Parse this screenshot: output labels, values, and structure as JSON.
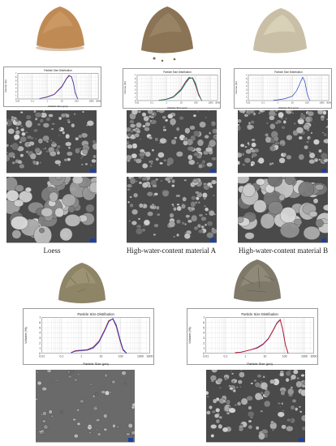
{
  "captions": {
    "loess": "Loess",
    "material_a": "High-water-content material A",
    "material_b": "High-water-content material B"
  },
  "colors": {
    "loess": "#c08a55",
    "material_a": "#8b7355",
    "material_b": "#c9bfa6",
    "material_ab_mix_1": "#8e8466",
    "material_ab_mix_2": "#7f796a",
    "curve_red": "#d2232a",
    "curve_blue": "#2440c8",
    "curve_green": "#2e9a3a"
  },
  "chart_data": [
    {
      "id": "loess",
      "type": "line",
      "title": "Particle Size Distribution",
      "xlabel": "Particle Size (μm)",
      "ylabel": "Volume (%)",
      "xscale": "log",
      "xlim": [
        0.01,
        3000
      ],
      "ylim": [
        0,
        7
      ],
      "xticks": [
        "0.01",
        "0.1",
        "1",
        "10",
        "100",
        "1000",
        "3000"
      ],
      "yticks": [
        "0",
        "1",
        "2",
        "3",
        "4",
        "5",
        "6",
        "7"
      ],
      "grid": true,
      "series": [
        {
          "color": "#d2232a",
          "x": [
            0.3,
            1,
            3,
            10,
            20,
            30,
            45,
            60,
            80,
            120
          ],
          "y": [
            0.1,
            0.6,
            1.3,
            3.5,
            5.6,
            6.5,
            6.0,
            4.3,
            1.6,
            0
          ]
        },
        {
          "color": "#2440c8",
          "x": [
            0.3,
            1,
            3,
            10,
            20,
            30,
            45,
            60,
            80,
            120
          ],
          "y": [
            0.1,
            0.5,
            1.2,
            3.3,
            5.4,
            6.3,
            6.1,
            4.5,
            1.8,
            0
          ]
        }
      ]
    },
    {
      "id": "material_a",
      "type": "line",
      "title": "Particle Size Distribution",
      "xlabel": "Particle Size (μm)",
      "ylabel": "Volume (%)",
      "xscale": "log",
      "xlim": [
        0.01,
        3000
      ],
      "ylim": [
        0,
        7
      ],
      "xticks": [
        "0.01",
        "0.1",
        "1",
        "10",
        "100",
        "1000",
        "3000"
      ],
      "yticks": [
        "0",
        "1",
        "2",
        "3",
        "4",
        "5",
        "6",
        "7"
      ],
      "grid": true,
      "series": [
        {
          "color": "#d2232a",
          "x": [
            0.3,
            1,
            3,
            10,
            20,
            35,
            60,
            100,
            150,
            250
          ],
          "y": [
            0.05,
            0.4,
            1.1,
            3.2,
            5.2,
            6.4,
            6.0,
            3.8,
            1.5,
            0
          ]
        },
        {
          "color": "#2440c8",
          "x": [
            0.3,
            1,
            3,
            10,
            20,
            35,
            60,
            100,
            150,
            250
          ],
          "y": [
            0.05,
            0.4,
            1.0,
            3.0,
            5.0,
            6.2,
            6.1,
            4.2,
            1.8,
            0
          ]
        },
        {
          "color": "#2e9a3a",
          "x": [
            0.3,
            1,
            3,
            10,
            20,
            35,
            60,
            100,
            150,
            250
          ],
          "y": [
            0.05,
            0.3,
            0.9,
            2.8,
            4.7,
            6.0,
            6.3,
            4.6,
            2.0,
            0
          ]
        }
      ]
    },
    {
      "id": "material_b",
      "type": "line",
      "title": "Particle Size Distribution",
      "xlabel": "Particle Size (μm)",
      "ylabel": "Volume (%)",
      "xscale": "log",
      "xlim": [
        0.01,
        3000
      ],
      "ylim": [
        0,
        7
      ],
      "xticks": [
        "0.01",
        "0.1",
        "1",
        "10",
        "100",
        "1000",
        "3000"
      ],
      "yticks": [
        "0",
        "1",
        "2",
        "3",
        "4",
        "5",
        "6",
        "7"
      ],
      "grid": true,
      "series": [
        {
          "color": "#2440c8",
          "x": [
            0.5,
            1,
            3,
            10,
            20,
            35,
            50,
            70,
            100,
            150
          ],
          "y": [
            0.05,
            0.2,
            0.5,
            1.2,
            2.8,
            5.0,
            6.4,
            5.2,
            2.0,
            0
          ]
        }
      ]
    },
    {
      "id": "mix_1",
      "type": "line",
      "title": "Particle Size Distribution",
      "xlabel": "Particle Size (μm)",
      "ylabel": "Volume (%)",
      "xscale": "log",
      "xlim": [
        0.01,
        3000
      ],
      "ylim": [
        0,
        7
      ],
      "xticks": [
        "0.01",
        "0.1",
        "1",
        "10",
        "100",
        "1000",
        "3000"
      ],
      "yticks": [
        "0",
        "1",
        "2",
        "3",
        "4",
        "5",
        "6",
        "7"
      ],
      "grid": true,
      "series": [
        {
          "color": "#d2232a",
          "x": [
            0.3,
            0.5,
            1,
            2,
            4,
            8,
            15,
            25,
            40,
            60,
            90,
            130,
            200
          ],
          "y": [
            0.1,
            0.5,
            0.6,
            0.7,
            1.2,
            2.4,
            4.5,
            6.4,
            6.7,
            5.2,
            2.6,
            0.6,
            0
          ]
        },
        {
          "color": "#2440c8",
          "x": [
            0.3,
            0.5,
            1,
            2,
            4,
            8,
            15,
            25,
            40,
            60,
            90,
            130,
            200
          ],
          "y": [
            0.1,
            0.4,
            0.5,
            0.6,
            1.0,
            2.2,
            4.3,
            6.2,
            6.8,
            5.5,
            2.9,
            0.8,
            0
          ]
        }
      ]
    },
    {
      "id": "mix_2",
      "type": "line",
      "title": "Particle Size Distribution",
      "xlabel": "Particle Size (μm)",
      "ylabel": "Volume (%)",
      "xscale": "log",
      "xlim": [
        0.01,
        3000
      ],
      "ylim": [
        0,
        7
      ],
      "xticks": [
        "0.01",
        "0.1",
        "1",
        "10",
        "100",
        "1000",
        "3000"
      ],
      "yticks": [
        "0",
        "1",
        "2",
        "3",
        "4",
        "5",
        "6",
        "7"
      ],
      "grid": true,
      "series": [
        {
          "color": "#2440c8",
          "x": [
            0.3,
            0.6,
            1,
            2,
            4,
            8,
            15,
            25,
            40,
            60,
            80,
            110,
            150
          ],
          "y": [
            0.1,
            0.2,
            0.4,
            0.7,
            1.1,
            1.8,
            2.9,
            4.4,
            5.9,
            6.6,
            4.6,
            1.6,
            0
          ]
        },
        {
          "color": "#d2232a",
          "x": [
            0.3,
            0.6,
            1,
            2,
            4,
            8,
            15,
            25,
            40,
            60,
            80,
            110,
            150
          ],
          "y": [
            0.1,
            0.2,
            0.4,
            0.7,
            1.0,
            1.7,
            2.8,
            4.3,
            5.8,
            6.5,
            4.7,
            1.7,
            0
          ]
        }
      ]
    }
  ]
}
